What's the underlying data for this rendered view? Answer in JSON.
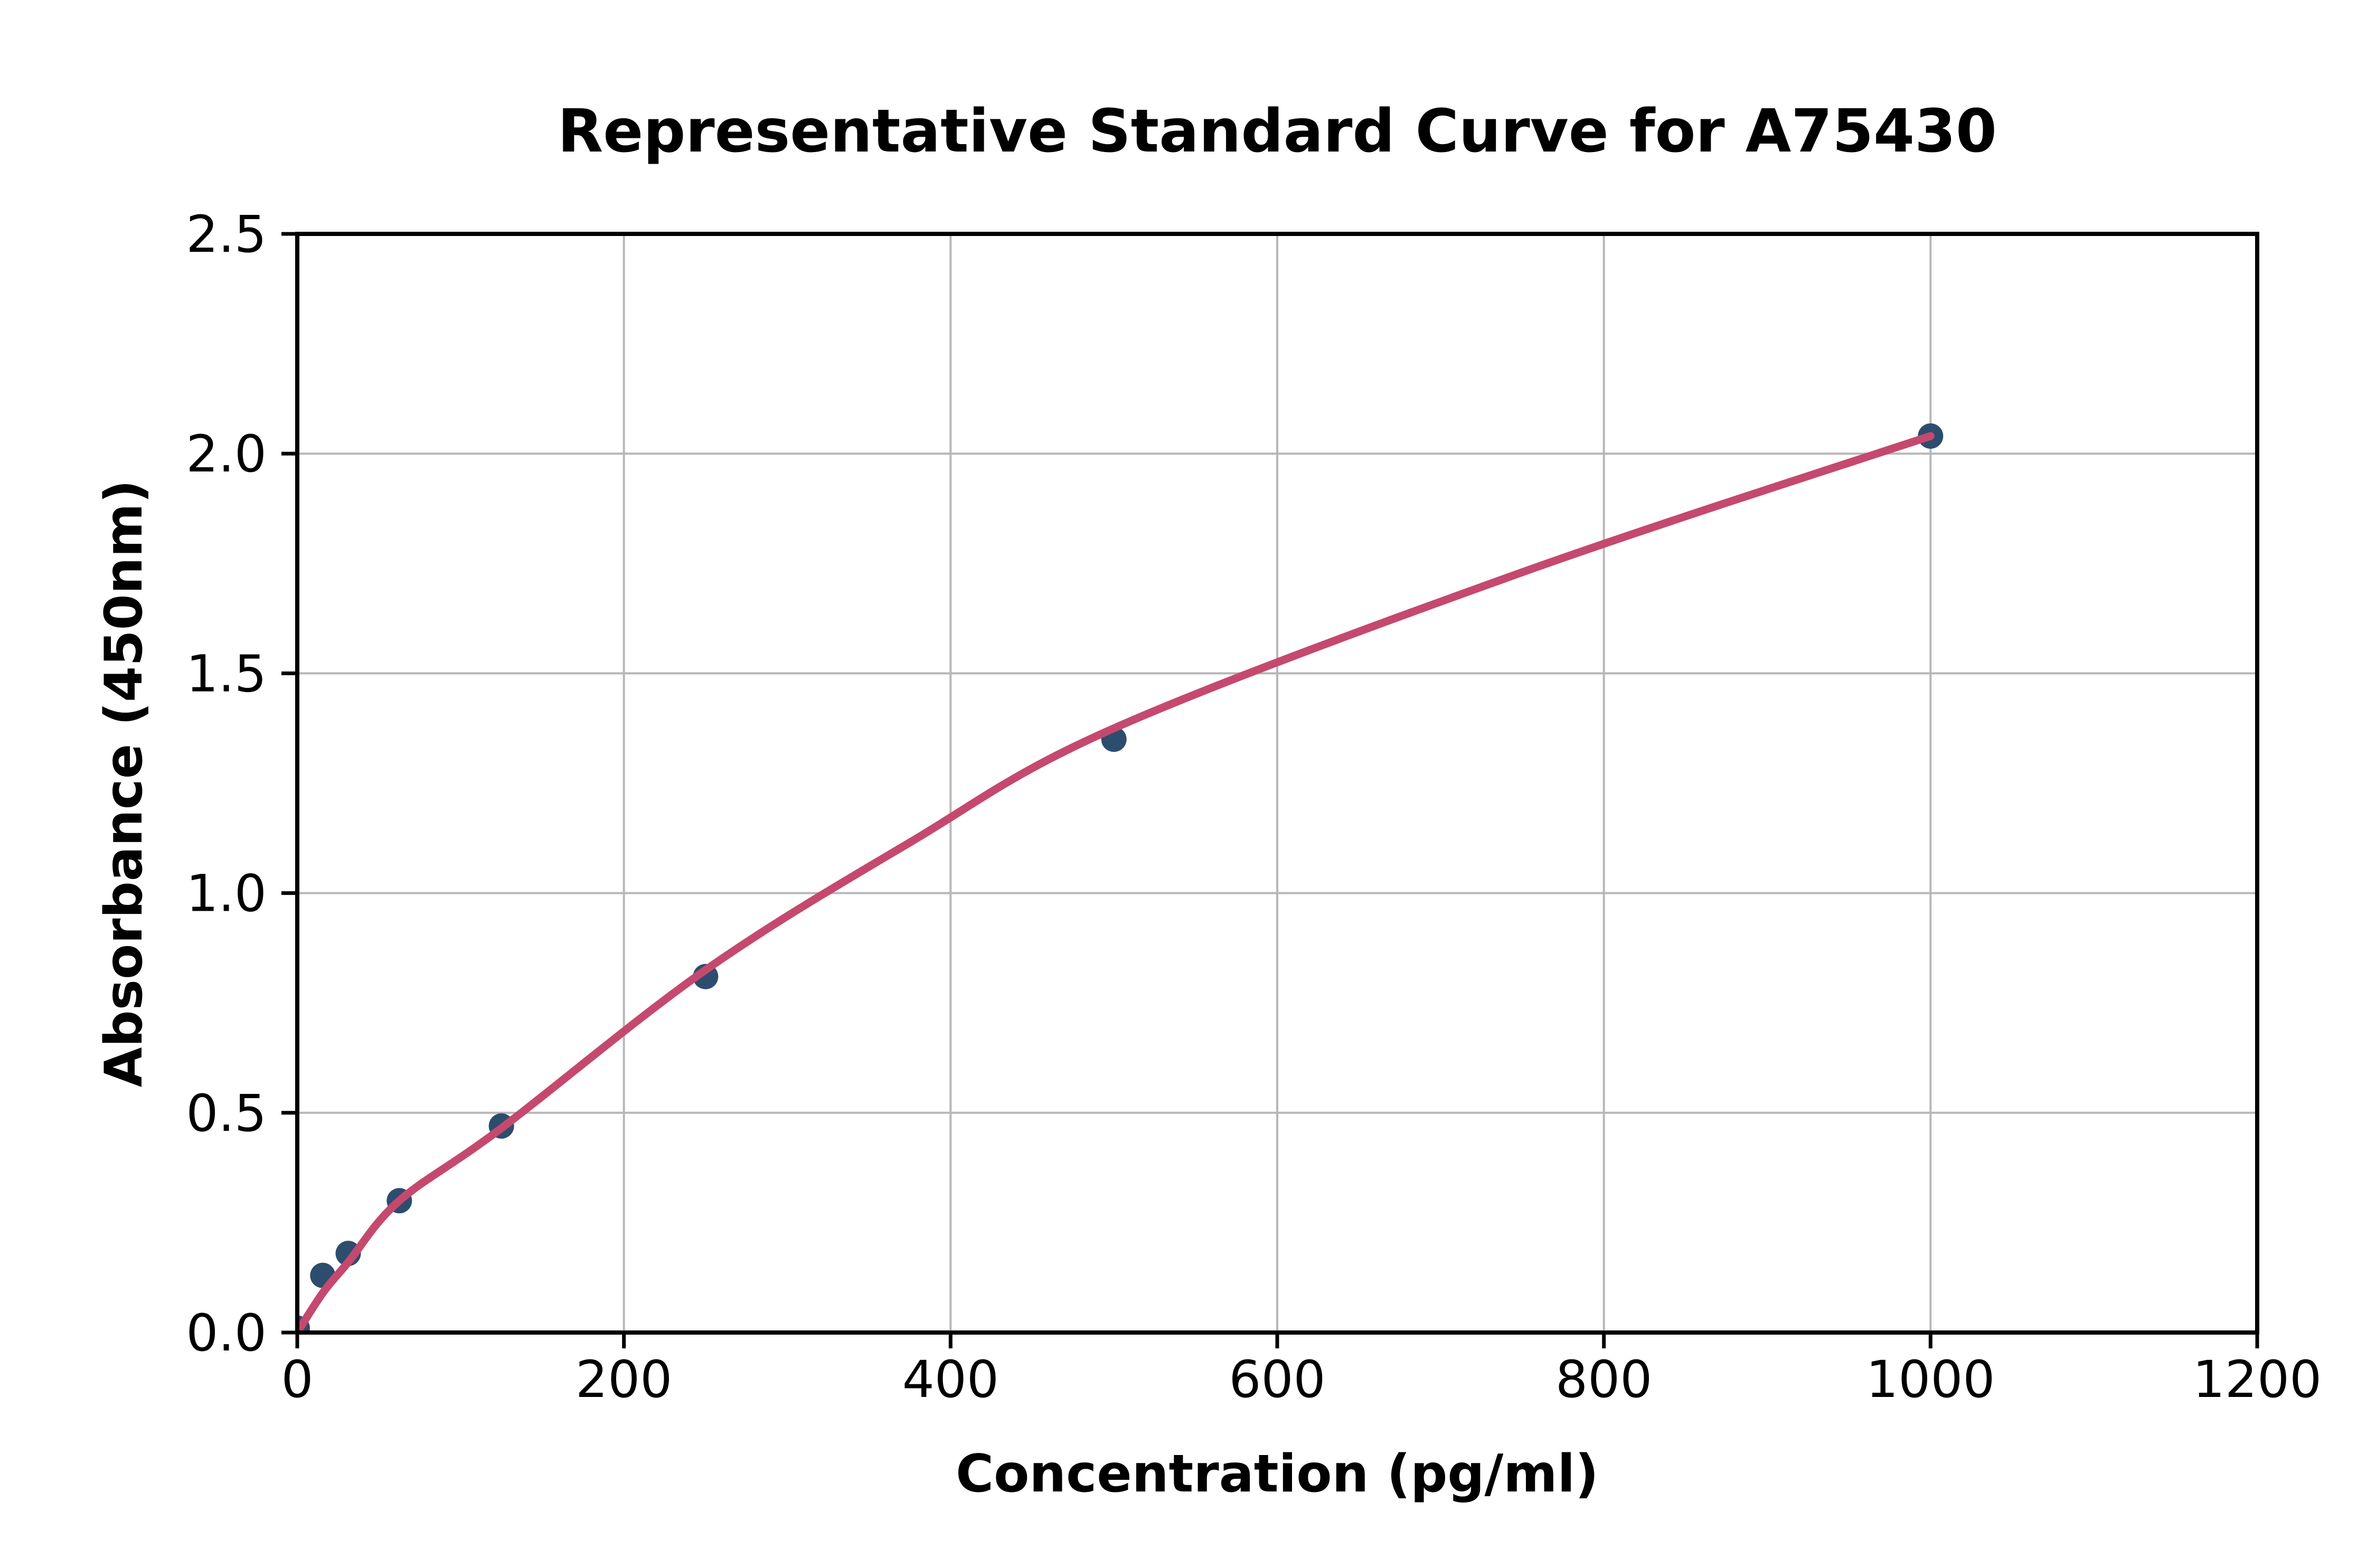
{
  "figure": {
    "background": "#ffffff"
  },
  "chart_data": {
    "type": "scatter",
    "title": "Representative Standard Curve for A75430",
    "xlabel": "Concentration (pg/ml)",
    "ylabel": "Absorbance (450nm)",
    "xlim": [
      0,
      1200
    ],
    "ylim": [
      0,
      2.5
    ],
    "xticks": {
      "values": [
        0,
        200,
        400,
        600,
        800,
        1000,
        1200
      ],
      "labels": [
        "0",
        "200",
        "400",
        "600",
        "800",
        "1000",
        "1200"
      ]
    },
    "yticks": {
      "values": [
        0,
        0.5,
        1.0,
        1.5,
        2.0,
        2.5
      ],
      "labels": [
        "0.0",
        "0.5",
        "1.0",
        "1.5",
        "2.0",
        "2.5"
      ]
    },
    "grid": true,
    "legend_position": "none",
    "series": [
      {
        "name": "standard-points",
        "type": "scatter",
        "points": [
          [
            0,
            0.01
          ],
          [
            15.6,
            0.13
          ],
          [
            31.2,
            0.18
          ],
          [
            62.5,
            0.3
          ],
          [
            125,
            0.47
          ],
          [
            250,
            0.81
          ],
          [
            500,
            1.35
          ],
          [
            1000,
            2.04
          ]
        ],
        "color": "#2d4d6e"
      },
      {
        "name": "fitted-curve",
        "type": "line",
        "points": [
          [
            0,
            0.0
          ],
          [
            15.6,
            0.09
          ],
          [
            31.2,
            0.16
          ],
          [
            62.5,
            0.3
          ],
          [
            125,
            0.465
          ],
          [
            250,
            0.825
          ],
          [
            375,
            1.115
          ],
          [
            500,
            1.375
          ],
          [
            750,
            1.73
          ],
          [
            1000,
            2.04
          ]
        ],
        "color": "#c5496e"
      }
    ],
    "colors": {
      "grid": "#b7b7b7",
      "axis": "#000000",
      "tick_text": "#000000"
    }
  }
}
